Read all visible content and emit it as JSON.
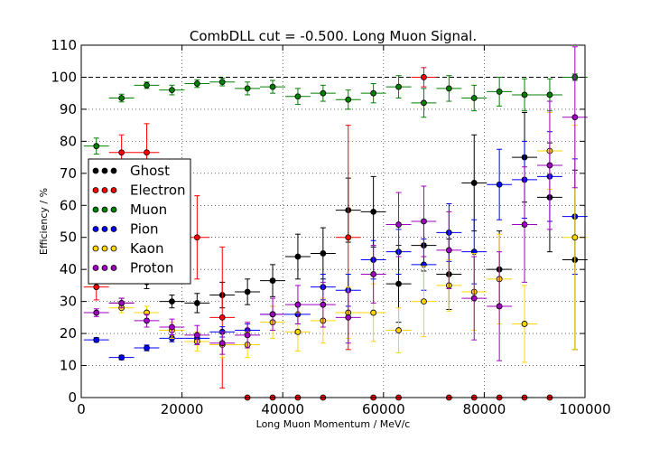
{
  "chart_data": {
    "type": "scatter",
    "title": "CombDLL cut = -0.500. Long Muon Signal.",
    "xlabel": "Long Muon Momentum / MeV/c",
    "ylabel": "Efficiency / %",
    "xlim": [
      0,
      100000
    ],
    "ylim": [
      0,
      110
    ],
    "x_ticks": [
      0,
      20000,
      40000,
      60000,
      80000,
      100000
    ],
    "y_ticks": [
      0,
      10,
      20,
      30,
      40,
      50,
      60,
      70,
      80,
      90,
      100,
      110
    ],
    "reference_line": 100,
    "grid": true,
    "legend_position": "left-middle",
    "x_bin_half_width": 2500,
    "series": [
      {
        "name": "Ghost",
        "color": "#000000",
        "x": [
          3000,
          8000,
          13000,
          18000,
          23000,
          28000,
          33000,
          38000,
          43000,
          48000,
          53000,
          58000,
          63000,
          68000,
          73000,
          78000,
          83000,
          88000,
          93000,
          98000
        ],
        "y": [
          null,
          29.5,
          36,
          30,
          29.5,
          32,
          33,
          36.5,
          44,
          45,
          58.5,
          58,
          35.5,
          47.5,
          38.5,
          67,
          40,
          75,
          62.5,
          43
        ],
        "yerr": [
          0,
          1.5,
          2,
          2,
          3,
          4,
          4,
          5,
          7,
          8,
          10,
          11,
          12,
          8,
          11,
          15,
          12,
          14,
          17,
          28
        ]
      },
      {
        "name": "Electron",
        "color": "#ff0000",
        "x": [
          3000,
          8000,
          13000,
          18000,
          23000,
          28000,
          33000,
          38000,
          43000,
          48000,
          53000,
          58000,
          63000,
          68000,
          73000,
          78000,
          83000,
          88000,
          93000,
          98000
        ],
        "y": [
          34.5,
          76.5,
          76.5,
          null,
          50,
          25,
          0,
          0,
          0,
          0,
          50,
          0,
          0,
          100,
          0,
          0,
          0,
          0,
          0,
          null
        ],
        "yerr": [
          4,
          5.5,
          9,
          0,
          13,
          22,
          0,
          0,
          0,
          0,
          35,
          0,
          0,
          3,
          0,
          0,
          0,
          0,
          0,
          0
        ]
      },
      {
        "name": "Muon",
        "color": "#008000",
        "x": [
          3000,
          8000,
          13000,
          18000,
          23000,
          28000,
          33000,
          38000,
          43000,
          48000,
          53000,
          58000,
          63000,
          68000,
          73000,
          78000,
          83000,
          88000,
          93000,
          98000
        ],
        "y": [
          78.5,
          93.5,
          97.5,
          96,
          98,
          98.5,
          96.5,
          97,
          94,
          95,
          93,
          95,
          97,
          92,
          96.5,
          93.5,
          95.5,
          94.5,
          94.5,
          100
        ],
        "yerr": [
          2.5,
          1.2,
          1,
          1.5,
          1.2,
          1.2,
          2,
          2,
          2.5,
          2.5,
          3,
          3,
          3.5,
          4.5,
          4,
          4,
          4.5,
          5,
          5,
          1
        ]
      },
      {
        "name": "Pion",
        "color": "#0000ff",
        "x": [
          3000,
          8000,
          13000,
          18000,
          23000,
          28000,
          33000,
          38000,
          43000,
          48000,
          53000,
          58000,
          63000,
          68000,
          73000,
          78000,
          83000,
          88000,
          93000,
          98000
        ],
        "y": [
          18,
          12.5,
          15.5,
          18.5,
          18.5,
          20.5,
          21,
          26,
          26,
          34.5,
          33.5,
          43,
          45.5,
          41.5,
          51.5,
          45.5,
          66.5,
          68,
          69,
          56.5
        ],
        "yerr": [
          0.7,
          0.7,
          0.9,
          1.1,
          1.3,
          1.6,
          2,
          2.5,
          3,
          4,
          5,
          6,
          7,
          8,
          9,
          10,
          11,
          12,
          14,
          18
        ]
      },
      {
        "name": "Kaon",
        "color": "#ffd700",
        "x": [
          3000,
          8000,
          13000,
          18000,
          23000,
          28000,
          33000,
          38000,
          43000,
          48000,
          53000,
          58000,
          63000,
          68000,
          73000,
          78000,
          83000,
          88000,
          93000,
          98000
        ],
        "y": [
          null,
          28,
          26.5,
          21,
          17.5,
          16.5,
          16.5,
          23.5,
          20.5,
          24,
          26.5,
          26.5,
          21,
          30,
          35,
          33,
          37,
          23,
          77,
          50
        ],
        "yerr": [
          0,
          1.5,
          2,
          2.5,
          3,
          4,
          4,
          5,
          6,
          7,
          8,
          9,
          7,
          11,
          8,
          12,
          14,
          12,
          12,
          35
        ]
      },
      {
        "name": "Proton",
        "color": "#a000c0",
        "x": [
          3000,
          8000,
          13000,
          18000,
          23000,
          28000,
          33000,
          38000,
          43000,
          48000,
          53000,
          58000,
          63000,
          68000,
          73000,
          78000,
          83000,
          88000,
          93000,
          98000
        ],
        "y": [
          26.5,
          29.5,
          24,
          22,
          19.5,
          17,
          19.5,
          26,
          29,
          29,
          25,
          38.5,
          54,
          55,
          46,
          31,
          28.5,
          54,
          72.5,
          87.5
        ],
        "yerr": [
          1.2,
          1.5,
          2,
          2.5,
          3,
          3.5,
          4,
          5,
          6,
          7,
          8,
          9,
          10,
          11,
          12,
          13,
          17,
          18,
          20,
          22
        ]
      }
    ]
  }
}
